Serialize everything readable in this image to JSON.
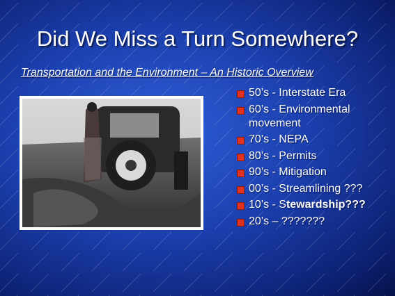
{
  "slide": {
    "title": "Did We Miss a Turn Somewhere?",
    "subtitle": "Transportation and the Environment –  An Historic Overview",
    "bullets": [
      {
        "text": "50’s - Interstate Era"
      },
      {
        "text": "60’s - Environmental movement"
      },
      {
        "text": "70’s - NEPA"
      },
      {
        "text": "80’s - Permits"
      },
      {
        "text": "90’s - Mitigation"
      },
      {
        "text": "00’s - Streamlining ???"
      },
      {
        "text": "10’s - S",
        "bold": "tewardship???"
      },
      {
        "text": "20’s –  ???????"
      }
    ]
  }
}
